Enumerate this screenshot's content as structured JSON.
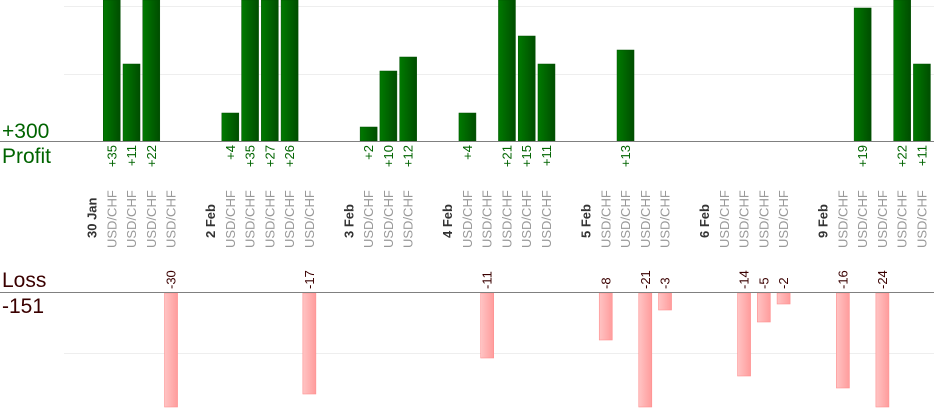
{
  "chart_data": {
    "type": "bar",
    "profit_label": "Profit",
    "loss_label": "Loss",
    "profit_total": "+300",
    "loss_total": "-151",
    "colors": {
      "profit": "#006400",
      "loss": "#ffaaaa",
      "profit_text": "#006400",
      "loss_text": "#3a0000",
      "pair_text": "#999999"
    },
    "groups": [
      {
        "date": "30 Jan",
        "trades": [
          {
            "pair": "USD/CHF",
            "value": 35
          },
          {
            "pair": "USD/CHF",
            "value": 11
          },
          {
            "pair": "USD/CHF",
            "value": 22
          },
          {
            "pair": "USD/CHF",
            "value": -30
          }
        ]
      },
      {
        "date": "2 Feb",
        "trades": [
          {
            "pair": "USD/CHF",
            "value": 4
          },
          {
            "pair": "USD/CHF",
            "value": 35
          },
          {
            "pair": "USD/CHF",
            "value": 27
          },
          {
            "pair": "USD/CHF",
            "value": 26
          },
          {
            "pair": "USD/CHF",
            "value": -17
          }
        ]
      },
      {
        "date": "3 Feb",
        "trades": [
          {
            "pair": "USD/CHF",
            "value": 2
          },
          {
            "pair": "USD/CHF",
            "value": 10
          },
          {
            "pair": "USD/CHF",
            "value": 12
          }
        ]
      },
      {
        "date": "4 Feb",
        "trades": [
          {
            "pair": "USD/CHF",
            "value": 4
          },
          {
            "pair": "USD/CHF",
            "value": -11
          },
          {
            "pair": "USD/CHF",
            "value": 21
          },
          {
            "pair": "USD/CHF",
            "value": 15
          },
          {
            "pair": "USD/CHF",
            "value": 11
          }
        ]
      },
      {
        "date": "5 Feb",
        "trades": [
          {
            "pair": "USD/CHF",
            "value": -8
          },
          {
            "pair": "USD/CHF",
            "value": 13
          },
          {
            "pair": "USD/CHF",
            "value": -21
          },
          {
            "pair": "USD/CHF",
            "value": -3
          }
        ]
      },
      {
        "date": "6 Feb",
        "trades": [
          {
            "pair": "USD/CHF",
            "value": 0
          },
          {
            "pair": "USD/CHF",
            "value": -14
          },
          {
            "pair": "USD/CHF",
            "value": -5
          },
          {
            "pair": "USD/CHF",
            "value": -2
          }
        ]
      },
      {
        "date": "9 Feb",
        "trades": [
          {
            "pair": "USD/CHF",
            "value": -16
          },
          {
            "pair": "USD/CHF",
            "value": 19
          },
          {
            "pair": "USD/CHF",
            "value": -24
          },
          {
            "pair": "USD/CHF",
            "value": 22
          },
          {
            "pair": "USD/CHF",
            "value": 11
          }
        ]
      }
    ]
  }
}
